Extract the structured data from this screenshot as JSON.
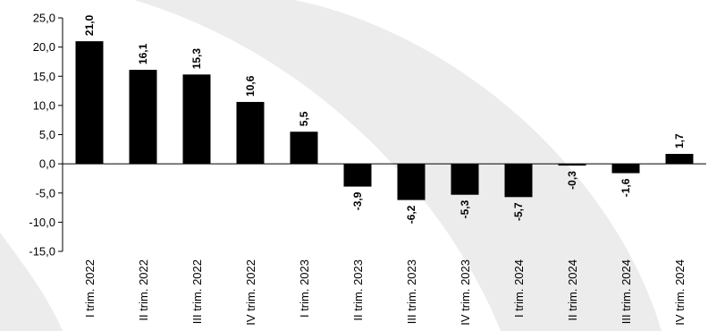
{
  "chart_data": {
    "type": "bar",
    "categories": [
      "I trim. 2022",
      "II trim. 2022",
      "III trim. 2022",
      "IV trim. 2022",
      "I trim. 2023",
      "II trim. 2023",
      "III trim. 2023",
      "IV trim. 2023",
      "I trim. 2024",
      "II trim. 2024",
      "III trim. 2024",
      "IV trim. 2024"
    ],
    "values": [
      21.0,
      16.1,
      15.3,
      10.6,
      5.5,
      -3.9,
      -6.2,
      -5.3,
      -5.7,
      -0.3,
      -1.6,
      1.7
    ],
    "value_labels": [
      "21,0",
      "16,1",
      "15,3",
      "10,6",
      "5,5",
      "-3,9",
      "-6,2",
      "-5,3",
      "-5,7",
      "-0,3",
      "-1,6",
      "1,7"
    ],
    "y_ticks": [
      25,
      20,
      15,
      10,
      5,
      0,
      -5,
      -10,
      -15
    ],
    "y_tick_labels": [
      "25,0",
      "20,0",
      "15,0",
      "10,0",
      "5,0",
      "0,0",
      "-5,0",
      "-10,0",
      "-15,0"
    ],
    "ylim": [
      -15,
      25
    ],
    "title": "",
    "xlabel": "",
    "ylabel": "",
    "grid": false,
    "legend": "none",
    "colors": {
      "bar": "#000000",
      "axis": "#000000",
      "watermark": "#ececec"
    }
  }
}
